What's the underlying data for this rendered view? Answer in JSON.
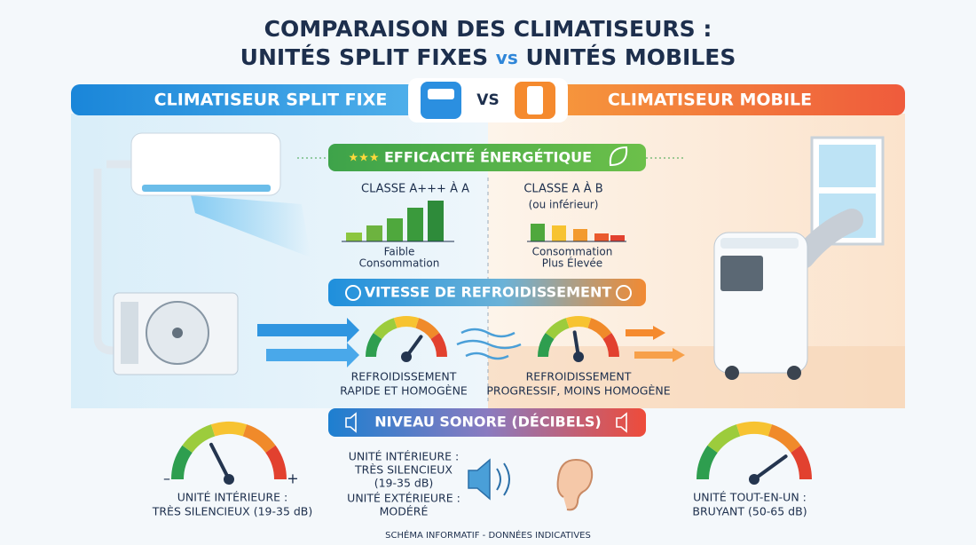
{
  "title": {
    "line1": "COMPARAISON DES CLIMATISEURS :",
    "line2": [
      "UNITÉS SPLIT FIXES",
      "vs",
      "UNITÉS MOBILES"
    ]
  },
  "header": {
    "left": "CLIMATISEUR SPLIT FIXE",
    "vs": "VS",
    "right": "CLIMATISEUR MOBILE"
  },
  "sections": [
    {
      "title": "EFFICACITÉ ÉNERGÉTIQUE",
      "left": {
        "class": "CLASSE A+++ À A",
        "caption": [
          "Faible",
          "Consommation"
        ]
      },
      "right": {
        "class": "CLASSE A À B",
        "note": "(ou inférieur)",
        "caption": [
          "Consommation",
          "Plus Élevée"
        ]
      }
    },
    {
      "title": "VITESSE DE REFROIDISSEMENT",
      "left": [
        "REFROIDISSEMENT",
        "RAPIDE ET HOMOGÈNE"
      ],
      "right": [
        "REFROIDISSEMENT",
        "PROGRESSIF, MOINS HOMOGÈNE"
      ]
    },
    {
      "title": "NIVEAU SONORE (DÉCIBELS)",
      "left": {
        "min": "–",
        "max": "+",
        "caption": [
          "UNITÉ INTÉRIEURE :",
          "TRÈS SILENCIEUX (19-35 dB)"
        ]
      },
      "middle": [
        "UNITÉ INTÉRIEURE :",
        "TRÈS SILENCIEUX",
        "(19-35 dB)",
        "UNITÉ EXTÉRIEURE :",
        "MODÉRÉ"
      ],
      "right": [
        "UNITÉ TOUT-EN-UN :",
        "BRUYANT (50-65 dB)"
      ]
    }
  ],
  "footer": "SCHÉMA INFORMATIF - DONNÉES INDICATIVES"
}
